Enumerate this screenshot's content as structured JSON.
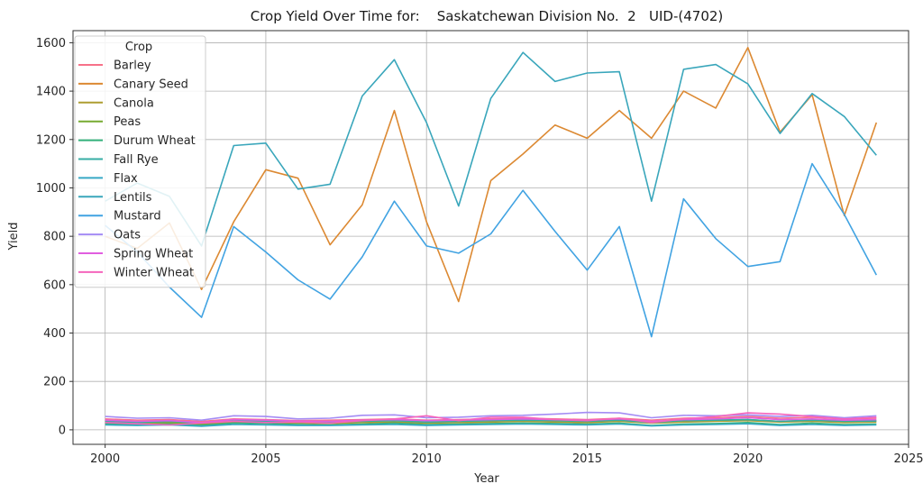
{
  "chart_data": {
    "type": "line",
    "title": "Crop Yield Over Time for:    Saskatchewan Division No.  2   UID-(4702)",
    "xlabel": "Year",
    "ylabel": "Yield",
    "xlim": [
      1999,
      2025
    ],
    "ylim": [
      -60,
      1650
    ],
    "x_ticks": [
      2000,
      2005,
      2010,
      2015,
      2020,
      2025
    ],
    "y_ticks": [
      0,
      200,
      400,
      600,
      800,
      1000,
      1200,
      1400,
      1600
    ],
    "grid": true,
    "legend_title": "Crop",
    "legend_position": "upper-left",
    "x": [
      2000,
      2001,
      2002,
      2003,
      2004,
      2005,
      2006,
      2007,
      2008,
      2009,
      2010,
      2011,
      2012,
      2013,
      2014,
      2015,
      2016,
      2017,
      2018,
      2019,
      2020,
      2021,
      2022,
      2023,
      2024
    ],
    "series": [
      {
        "name": "Barley",
        "color": "#f77189",
        "values": [
          45,
          40,
          42,
          35,
          45,
          42,
          38,
          40,
          42,
          45,
          40,
          42,
          45,
          48,
          45,
          42,
          48,
          40,
          48,
          50,
          55,
          48,
          52,
          45,
          48
        ]
      },
      {
        "name": "Canary Seed",
        "color": "#dc8932",
        "values": [
          800,
          750,
          855,
          580,
          860,
          1075,
          1040,
          765,
          930,
          1320,
          860,
          530,
          1030,
          1140,
          1260,
          1205,
          1320,
          1205,
          1400,
          1330,
          1580,
          1230,
          1385,
          885,
          1270
        ]
      },
      {
        "name": "Canola",
        "color": "#ae9d31",
        "values": [
          30,
          25,
          28,
          22,
          32,
          30,
          28,
          26,
          30,
          32,
          28,
          30,
          32,
          35,
          32,
          30,
          35,
          28,
          32,
          35,
          38,
          32,
          35,
          30,
          32
        ]
      },
      {
        "name": "Peas",
        "color": "#77ab31",
        "values": [
          35,
          30,
          32,
          25,
          38,
          35,
          30,
          32,
          35,
          38,
          32,
          35,
          38,
          40,
          38,
          35,
          40,
          32,
          38,
          40,
          42,
          35,
          40,
          35,
          38
        ]
      },
      {
        "name": "Durum Wheat",
        "color": "#33b07a",
        "values": [
          25,
          22,
          24,
          18,
          28,
          26,
          22,
          20,
          24,
          28,
          22,
          24,
          26,
          28,
          26,
          24,
          28,
          18,
          24,
          26,
          30,
          22,
          28,
          22,
          24
        ]
      },
      {
        "name": "Fall Rye",
        "color": "#36ada4",
        "values": [
          35,
          30,
          35,
          28,
          38,
          35,
          32,
          30,
          35,
          38,
          32,
          35,
          38,
          40,
          38,
          35,
          40,
          30,
          38,
          40,
          42,
          35,
          40,
          35,
          36
        ]
      },
      {
        "name": "Flax",
        "color": "#38a9c5",
        "values": [
          20,
          18,
          20,
          15,
          22,
          20,
          18,
          18,
          20,
          22,
          18,
          20,
          22,
          24,
          22,
          20,
          24,
          16,
          20,
          22,
          25,
          18,
          22,
          18,
          20
        ]
      },
      {
        "name": "Lentils",
        "color": "#39a6bb",
        "values": [
          945,
          1020,
          965,
          760,
          1175,
          1185,
          995,
          1015,
          1380,
          1530,
          1270,
          925,
          1370,
          1560,
          1440,
          1475,
          1480,
          945,
          1490,
          1510,
          1430,
          1225,
          1390,
          1295,
          1135
        ]
      },
      {
        "name": "Mustard",
        "color": "#41a3e2",
        "values": [
          845,
          735,
          590,
          465,
          840,
          735,
          620,
          540,
          715,
          945,
          760,
          730,
          810,
          990,
          820,
          660,
          840,
          385,
          955,
          790,
          675,
          695,
          1100,
          890,
          640
        ]
      },
      {
        "name": "Oats",
        "color": "#a48cf4",
        "values": [
          55,
          48,
          50,
          40,
          58,
          55,
          45,
          48,
          60,
          62,
          50,
          52,
          58,
          60,
          65,
          72,
          70,
          50,
          60,
          58,
          62,
          55,
          60,
          50,
          58
        ]
      },
      {
        "name": "Spring Wheat",
        "color": "#e15ee0",
        "values": [
          40,
          35,
          38,
          30,
          42,
          40,
          36,
          35,
          40,
          42,
          38,
          40,
          42,
          45,
          42,
          40,
          45,
          35,
          42,
          45,
          50,
          42,
          45,
          40,
          42
        ]
      },
      {
        "name": "Winter Wheat",
        "color": "#f565bc",
        "values": [
          30,
          25,
          20,
          28,
          35,
          30,
          32,
          28,
          38,
          45,
          58,
          38,
          52,
          52,
          42,
          38,
          48,
          30,
          45,
          55,
          70,
          65,
          55,
          45,
          52
        ]
      }
    ]
  }
}
